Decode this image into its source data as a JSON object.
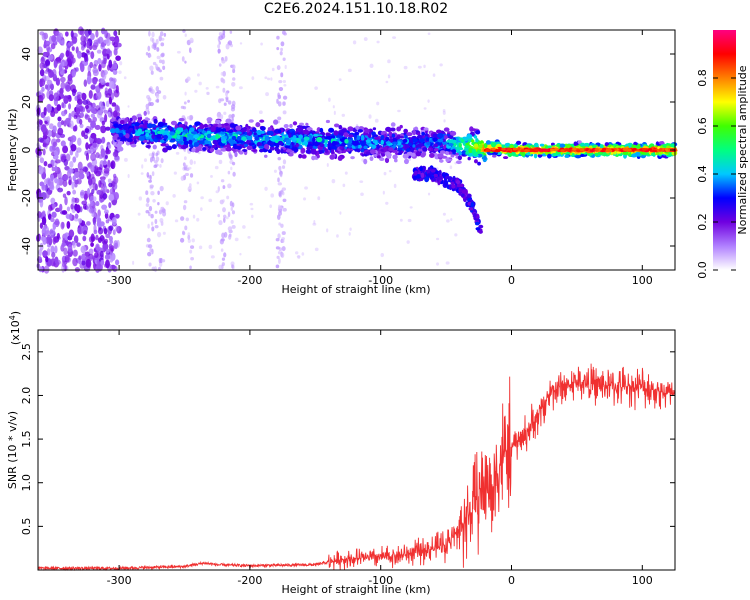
{
  "title": "C2E6.2024.151.10.18.R02",
  "chart_data": [
    {
      "type": "heatmap",
      "xlabel": "Height of straight line (km)",
      "ylabel": "Frequency (Hz)",
      "xlim": [
        -362,
        125
      ],
      "ylim": [
        -50,
        50
      ],
      "xticks": [
        -300,
        -200,
        -100,
        0,
        100
      ],
      "yticks": [
        -40,
        -20,
        0,
        20,
        40
      ],
      "colorbar": {
        "label": "Normalized spectral amplitude",
        "range": [
          0.0,
          1.0
        ],
        "ticks": [
          0.0,
          0.2,
          0.4,
          0.6,
          0.8
        ],
        "tick_labels": [
          "0.0",
          "0.2",
          "0.4",
          "0.6",
          "0.8"
        ],
        "colormap": [
          "#ffffff",
          "#b080ff",
          "#7000e0",
          "#0000ff",
          "#00c8ff",
          "#00ff80",
          "#40ff00",
          "#ffff00",
          "#ff8000",
          "#ff0000",
          "#ff0080"
        ]
      },
      "band": [
        {
          "height": -300,
          "freq": 8,
          "amp": 0.3
        },
        {
          "height": -250,
          "freq": 6,
          "amp": 0.45
        },
        {
          "height": -200,
          "freq": 5,
          "amp": 0.4
        },
        {
          "height": -150,
          "freq": 4,
          "amp": 0.4
        },
        {
          "height": -100,
          "freq": 3,
          "amp": 0.35
        },
        {
          "height": -50,
          "freq": 3,
          "amp": 0.35
        },
        {
          "height": -20,
          "freq": 1,
          "amp": 0.8
        },
        {
          "height": 0,
          "freq": 0,
          "amp": 0.85
        },
        {
          "height": 50,
          "freq": 0,
          "amp": 0.85
        },
        {
          "height": 100,
          "freq": 0,
          "amp": 0.85
        },
        {
          "height": 125,
          "freq": 0,
          "amp": 0.85
        }
      ],
      "tail": [
        {
          "height": -60,
          "freq": -10
        },
        {
          "height": -40,
          "freq": -15
        },
        {
          "height": -28,
          "freq": -25
        },
        {
          "height": -25,
          "freq": -32
        }
      ]
    },
    {
      "type": "line",
      "xlabel": "Height of straight line (km)",
      "ylabel": "SNR (10 * v/v)",
      "multiplier": "(x10",
      "multiplier_exp": "4",
      "multiplier_close": ")",
      "xlim": [
        -362,
        125
      ],
      "ylim": [
        0,
        2.75
      ],
      "xticks": [
        -300,
        -200,
        -100,
        0,
        100
      ],
      "yticks": [
        0.5,
        1.0,
        1.5,
        2.0,
        2.5
      ],
      "ytick_labels": [
        "0.5",
        "1.0",
        "1.5",
        "2.0",
        "2.5"
      ],
      "color": "#f03030",
      "x": [
        -362,
        -300,
        -250,
        -235,
        -225,
        -200,
        -150,
        -130,
        -100,
        -80,
        -60,
        -50,
        -40,
        -30,
        -25,
        -20,
        -15,
        -10,
        -5,
        0,
        10,
        20,
        30,
        50,
        80,
        100,
        125
      ],
      "y": [
        0.02,
        0.02,
        0.04,
        0.08,
        0.06,
        0.05,
        0.06,
        0.12,
        0.15,
        0.18,
        0.25,
        0.3,
        0.45,
        0.7,
        0.85,
        1.0,
        0.9,
        1.2,
        1.35,
        1.4,
        1.55,
        1.75,
        2.05,
        2.15,
        2.1,
        2.1,
        2.0
      ]
    }
  ]
}
